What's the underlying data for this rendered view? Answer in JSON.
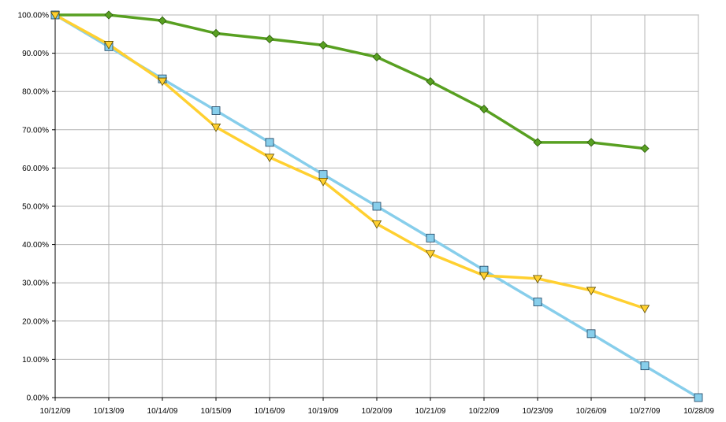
{
  "chart_data": {
    "type": "line",
    "title": "",
    "xlabel": "",
    "ylabel": "",
    "categories": [
      "10/12/09",
      "10/13/09",
      "10/14/09",
      "10/15/09",
      "10/16/09",
      "10/19/09",
      "10/20/09",
      "10/21/09",
      "10/22/09",
      "10/23/09",
      "10/26/09",
      "10/27/09",
      "10/28/09"
    ],
    "y_tick_labels": [
      "0.00%",
      "10.00%",
      "20.00%",
      "30.00%",
      "40.00%",
      "50.00%",
      "60.00%",
      "70.00%",
      "80.00%",
      "90.00%",
      "100.00%"
    ],
    "ylim": [
      0,
      100
    ],
    "grid": true,
    "legend": "none",
    "series": [
      {
        "marker": "diamond",
        "color": "#58a021",
        "values": [
          100,
          100,
          98.5,
          95.2,
          93.7,
          92.1,
          89,
          82.6,
          75.4,
          66.7,
          66.7,
          65.1,
          null
        ]
      },
      {
        "marker": "square",
        "color": "#87ceeb",
        "values": [
          100,
          91.7,
          83.3,
          75,
          66.7,
          58.3,
          50,
          41.7,
          33.3,
          25,
          16.7,
          8.3,
          0
        ]
      },
      {
        "marker": "triangle-down",
        "color": "#ffd030",
        "values": [
          100,
          92.3,
          82.7,
          70.7,
          62.8,
          56.5,
          45.4,
          37.6,
          31.9,
          31.1,
          28,
          23.3,
          null
        ]
      }
    ]
  }
}
